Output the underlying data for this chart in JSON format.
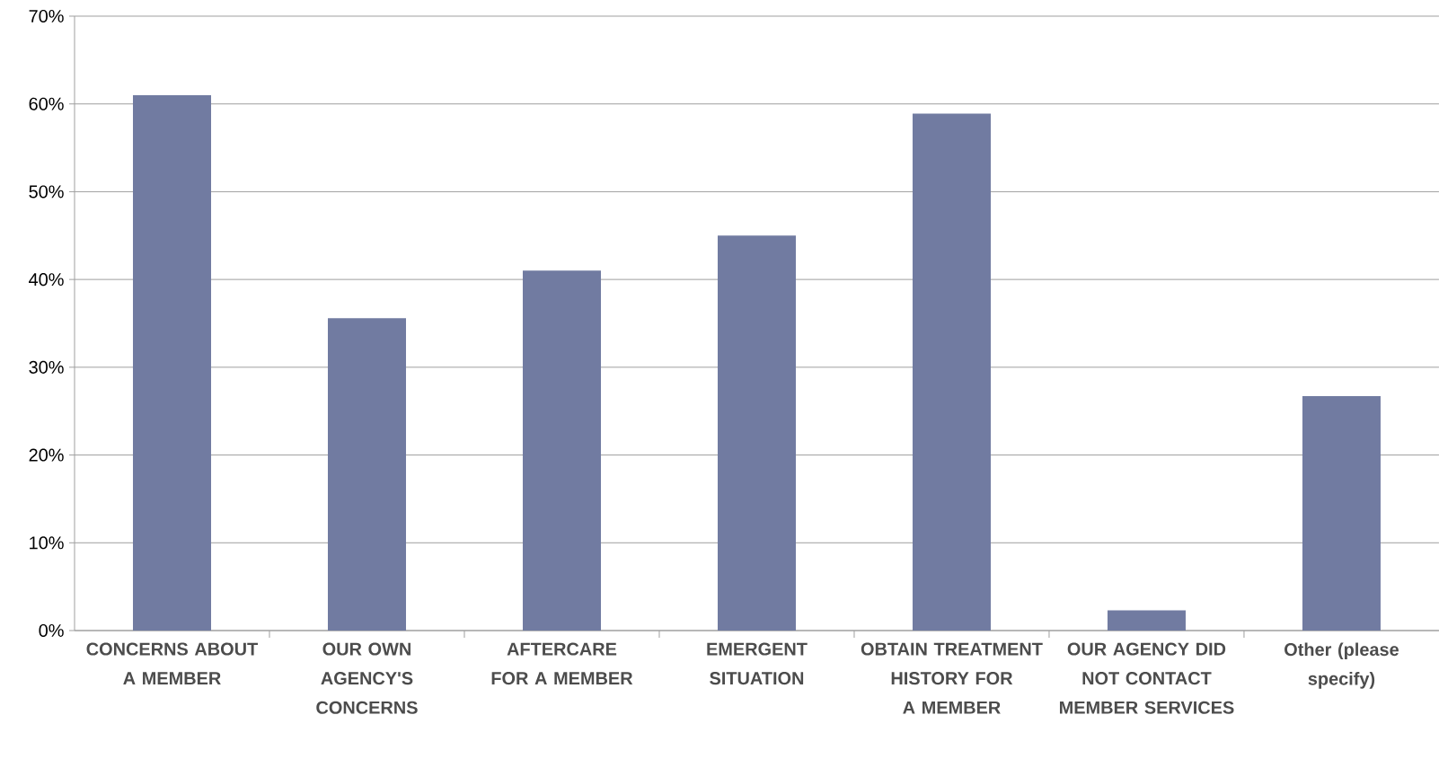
{
  "chart_data": {
    "type": "bar",
    "categories": [
      "CONCERNS ABOUT A MEMBER",
      "OUR OWN AGENCY'S CONCERNS",
      "AFTERCARE FOR A MEMBER",
      "EMERGENT SITUATION",
      "OBTAIN TREATMENT HISTORY FOR A MEMBER",
      "OUR AGENCY DID NOT CONTACT MEMBER SERVICES",
      "Other (please specify)"
    ],
    "values": [
      61,
      35.6,
      41,
      45,
      58.9,
      2.3,
      26.7
    ],
    "color": "#717ba1",
    "ylim": [
      0,
      70
    ],
    "yticks": [
      {
        "value": 0,
        "label": "0%"
      },
      {
        "value": 10,
        "label": "10%"
      },
      {
        "value": 20,
        "label": "20%"
      },
      {
        "value": 30,
        "label": "30%"
      },
      {
        "value": 40,
        "label": "40%"
      },
      {
        "value": 50,
        "label": "50%"
      },
      {
        "value": 60,
        "label": "60%"
      },
      {
        "value": 70,
        "label": "70%"
      }
    ],
    "grid": "y"
  }
}
